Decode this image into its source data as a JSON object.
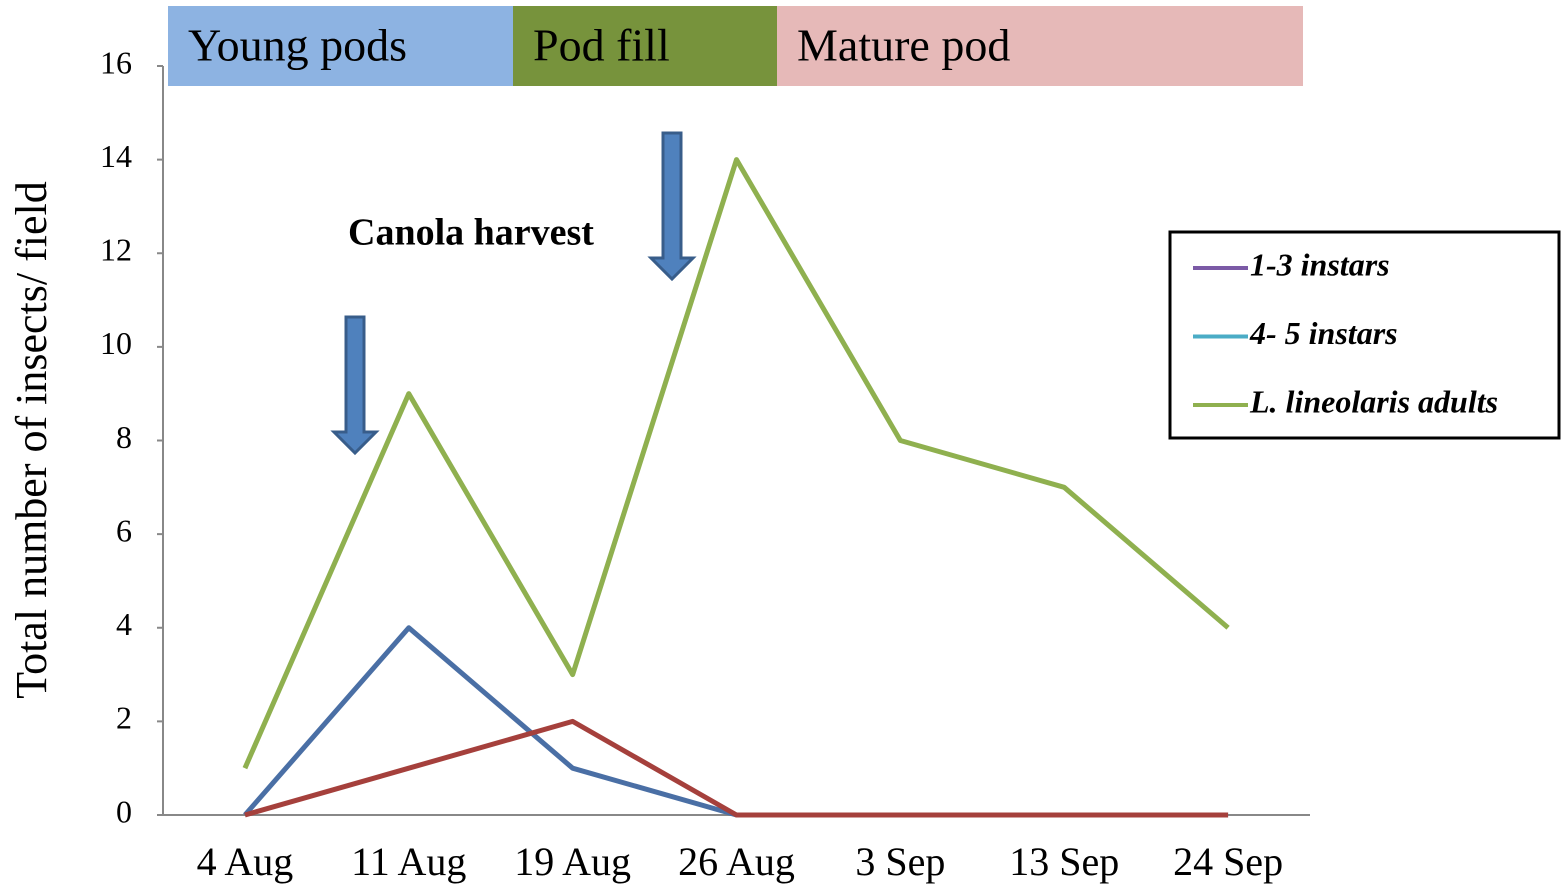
{
  "chart_data": {
    "type": "line",
    "y_label": "Total number of insects/ field",
    "annotation": "Canola harvest",
    "phases": [
      {
        "name": "Young pods",
        "color": "#8db3e2"
      },
      {
        "name": "Pod fill",
        "color": "#77933c"
      },
      {
        "name": "Mature pod",
        "color": "#e6b9b8"
      }
    ],
    "categories": [
      "4 Aug",
      "11 Aug",
      "19 Aug",
      "26 Aug",
      "3 Sep",
      "13 Sep",
      "24 Sep"
    ],
    "series": [
      {
        "name": "1-3 instars",
        "color": "#4a6fa5",
        "legend_color": "#7b5aa6",
        "values": [
          0,
          4,
          1,
          0,
          0,
          0,
          0
        ]
      },
      {
        "name": "4- 5 instars",
        "color": "#a5403c",
        "legend_color": "#4bacc6",
        "values": [
          0,
          1,
          2,
          0,
          0,
          0,
          0
        ]
      },
      {
        "name": "L. lineolaris adults",
        "color": "#8fb04f",
        "legend_color": "#8fb04f",
        "values": [
          1,
          9,
          3,
          14,
          8,
          7,
          4
        ]
      }
    ],
    "ylim": [
      0,
      16
    ],
    "yticks": [
      0,
      2,
      4,
      6,
      8,
      10,
      12,
      14,
      16
    ],
    "grid": false,
    "legend": "right"
  }
}
